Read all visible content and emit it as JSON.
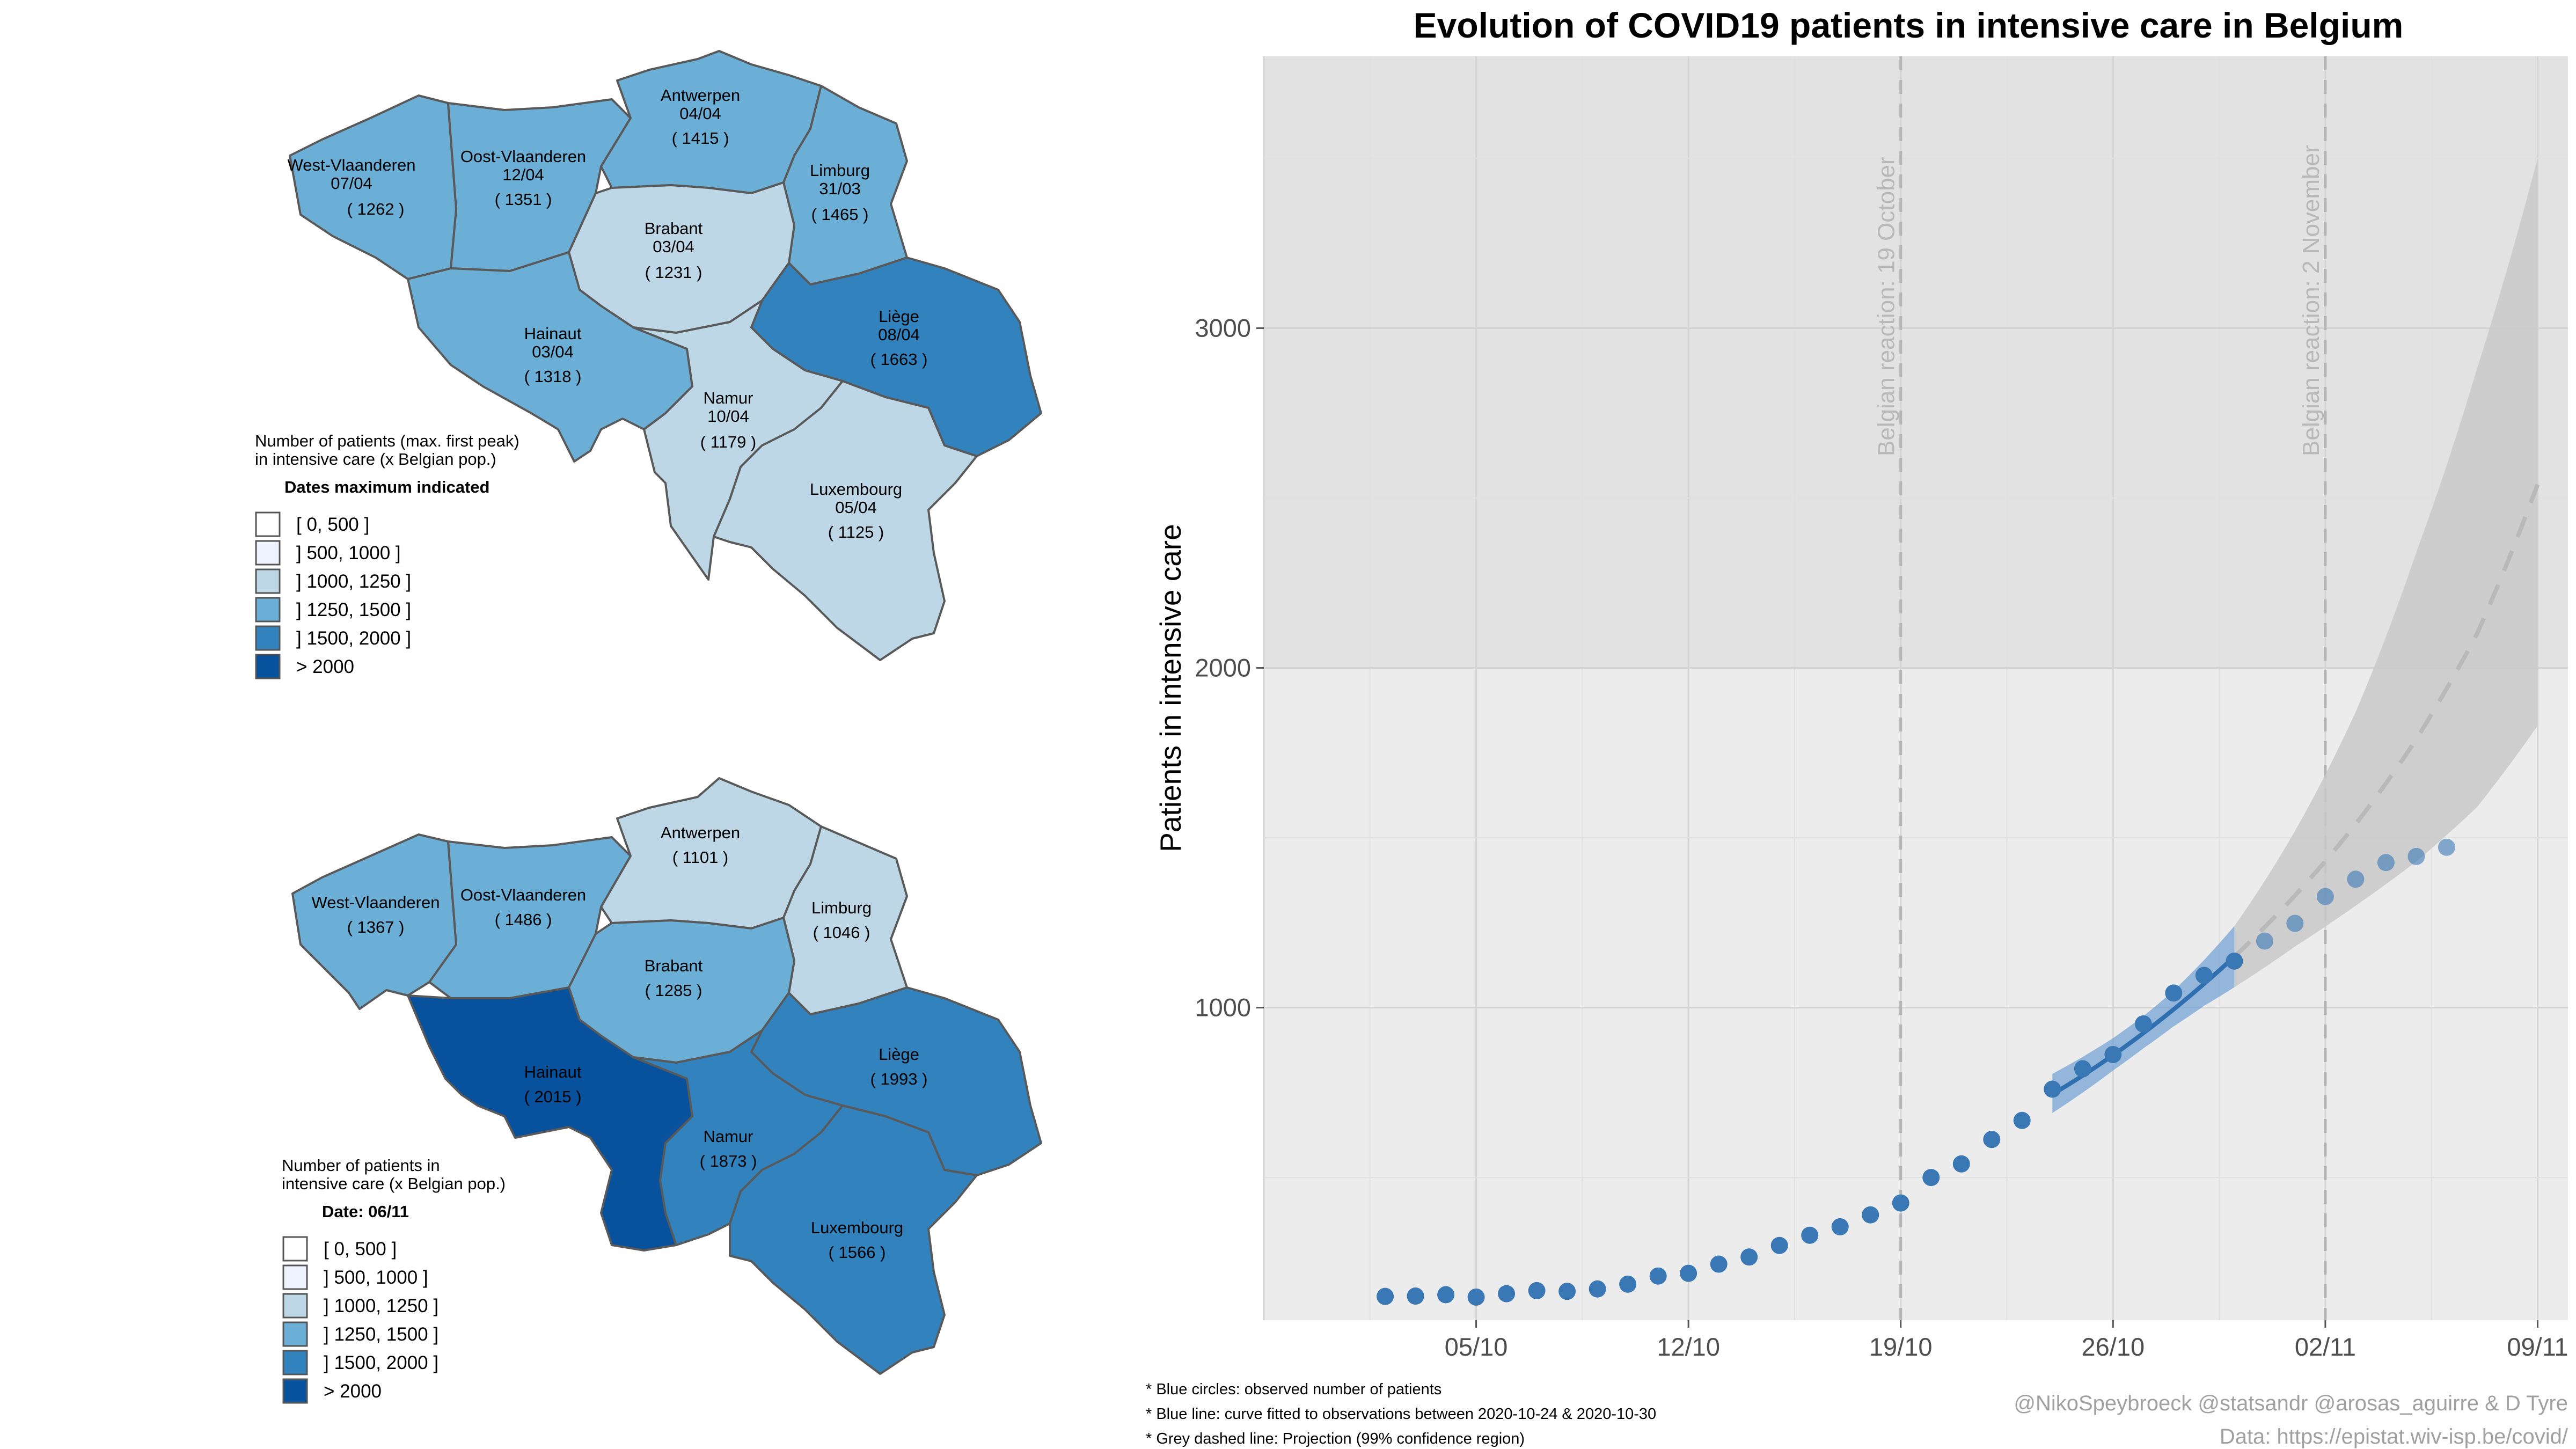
{
  "colors": {
    "bin_0": "#ffffff",
    "bin_1": "#eff3ff",
    "bin_2": "#bdd7e7",
    "bin_3": "#6baed6",
    "bin_4": "#3182bd",
    "bin_5": "#08519c",
    "obs_blue": "#3a78b5",
    "fit_band": "#6e9fd3",
    "proj_band": "#c9c9c9",
    "panel_dark": "#e2e2e2",
    "panel_light": "#ececec"
  },
  "map_top": {
    "legend_title_1": "Number of patients (max. first peak)",
    "legend_title_2": "in intensive care (x Belgian pop.)",
    "legend_subtitle": "Dates maximum indicated",
    "legend_items": [
      "[ 0, 500 ]",
      "] 500, 1000 ]",
      "] 1000, 1250 ]",
      "] 1250, 1500 ]",
      "] 1500, 2000 ]",
      "> 2000"
    ],
    "provinces": {
      "west": {
        "name": "West-Vlaanderen",
        "date": "07/04",
        "value": "( 1262 )",
        "bin": 3
      },
      "oost": {
        "name": "Oost-Vlaanderen",
        "date": "12/04",
        "value": "( 1351 )",
        "bin": 3
      },
      "antwerpen": {
        "name": "Antwerpen",
        "date": "04/04",
        "value": "( 1415 )",
        "bin": 3
      },
      "limburg": {
        "name": "Limburg",
        "date": "31/03",
        "value": "( 1465 )",
        "bin": 3
      },
      "brabant": {
        "name": "Brabant",
        "date": "03/04",
        "value": "( 1231 )",
        "bin": 2
      },
      "hainaut": {
        "name": "Hainaut",
        "date": "03/04",
        "value": "( 1318 )",
        "bin": 3
      },
      "liege": {
        "name": "Liège",
        "date": "08/04",
        "value": "( 1663 )",
        "bin": 4
      },
      "namur": {
        "name": "Namur",
        "date": "10/04",
        "value": "( 1179 )",
        "bin": 2
      },
      "luxembourg": {
        "name": "Luxembourg",
        "date": "05/04",
        "value": "( 1125 )",
        "bin": 2
      }
    }
  },
  "map_bottom": {
    "legend_title_1": "Number of patients in",
    "legend_title_2": "intensive care (x Belgian pop.)",
    "legend_subtitle": "Date: 06/11",
    "legend_items": [
      "[ 0, 500 ]",
      "] 500, 1000 ]",
      "] 1000, 1250 ]",
      "] 1250, 1500 ]",
      "] 1500, 2000 ]",
      "> 2000"
    ],
    "provinces": {
      "west": {
        "name": "West-Vlaanderen",
        "value": "( 1367 )",
        "bin": 3
      },
      "oost": {
        "name": "Oost-Vlaanderen",
        "value": "( 1486 )",
        "bin": 3
      },
      "antwerpen": {
        "name": "Antwerpen",
        "value": "( 1101 )",
        "bin": 2
      },
      "limburg": {
        "name": "Limburg",
        "value": "( 1046 )",
        "bin": 2
      },
      "brabant": {
        "name": "Brabant",
        "value": "( 1285 )",
        "bin": 3
      },
      "hainaut": {
        "name": "Hainaut",
        "value": "( 2015 )",
        "bin": 5
      },
      "liege": {
        "name": "Liège",
        "value": "( 1993 )",
        "bin": 4
      },
      "namur": {
        "name": "Namur",
        "value": "( 1873 )",
        "bin": 4
      },
      "luxembourg": {
        "name": "Luxembourg",
        "value": "( 1566 )",
        "bin": 4
      }
    }
  },
  "chart_data": {
    "type": "scatter",
    "title": "Evolution of COVID19 patients in intensive care in Belgium",
    "xlabel": "",
    "ylabel": "Patients in intensive care",
    "x_range": [
      "2020-09-28",
      "2020-11-10"
    ],
    "ylim": [
      80,
      3800
    ],
    "x_ticks": [
      {
        "date": "2020-10-05",
        "label": "05/10"
      },
      {
        "date": "2020-10-12",
        "label": "12/10"
      },
      {
        "date": "2020-10-19",
        "label": "19/10"
      },
      {
        "date": "2020-10-26",
        "label": "26/10"
      },
      {
        "date": "2020-11-02",
        "label": "02/11"
      },
      {
        "date": "2020-11-09",
        "label": "09/11"
      }
    ],
    "y_ticks": [
      1000,
      2000,
      3000
    ],
    "grid": true,
    "shaded_region_above": 2000,
    "reference_lines": [
      {
        "date": "2020-10-19",
        "label": "Belgian reaction: 19 October"
      },
      {
        "date": "2020-11-02",
        "label": "Belgian reaction: 2 November"
      }
    ],
    "observed": {
      "name": "Blue circles: observed number of patients",
      "points": [
        {
          "date": "2020-10-02",
          "y": 150
        },
        {
          "date": "2020-10-03",
          "y": 151
        },
        {
          "date": "2020-10-04",
          "y": 155
        },
        {
          "date": "2020-10-05",
          "y": 148
        },
        {
          "date": "2020-10-06",
          "y": 158
        },
        {
          "date": "2020-10-07",
          "y": 167
        },
        {
          "date": "2020-10-08",
          "y": 165
        },
        {
          "date": "2020-10-09",
          "y": 172
        },
        {
          "date": "2020-10-10",
          "y": 186
        },
        {
          "date": "2020-10-11",
          "y": 210
        },
        {
          "date": "2020-10-12",
          "y": 218
        },
        {
          "date": "2020-10-13",
          "y": 245
        },
        {
          "date": "2020-10-14",
          "y": 266
        },
        {
          "date": "2020-10-15",
          "y": 300
        },
        {
          "date": "2020-10-16",
          "y": 330
        },
        {
          "date": "2020-10-17",
          "y": 355
        },
        {
          "date": "2020-10-18",
          "y": 390
        },
        {
          "date": "2020-10-19",
          "y": 425
        },
        {
          "date": "2020-10-20",
          "y": 500
        },
        {
          "date": "2020-10-21",
          "y": 540
        },
        {
          "date": "2020-10-22",
          "y": 612
        },
        {
          "date": "2020-10-23",
          "y": 668
        },
        {
          "date": "2020-10-24",
          "y": 760
        },
        {
          "date": "2020-10-25",
          "y": 820
        },
        {
          "date": "2020-10-26",
          "y": 862
        },
        {
          "date": "2020-10-27",
          "y": 952
        },
        {
          "date": "2020-10-28",
          "y": 1043
        },
        {
          "date": "2020-10-29",
          "y": 1095
        },
        {
          "date": "2020-10-30",
          "y": 1137
        },
        {
          "date": "2020-10-31",
          "y": 1196
        },
        {
          "date": "2020-11-01",
          "y": 1248
        },
        {
          "date": "2020-11-02",
          "y": 1327
        },
        {
          "date": "2020-11-03",
          "y": 1378
        },
        {
          "date": "2020-11-04",
          "y": 1427
        },
        {
          "date": "2020-11-05",
          "y": 1445
        },
        {
          "date": "2020-11-06",
          "y": 1472
        }
      ]
    },
    "fitted": {
      "name": "Blue line: curve fitted to observations between 2020-10-24 & 2020-10-30",
      "points": [
        {
          "date": "2020-10-24",
          "y": 745,
          "lo": 690,
          "hi": 805
        },
        {
          "date": "2020-10-25",
          "y": 800,
          "lo": 750,
          "hi": 855
        },
        {
          "date": "2020-10-26",
          "y": 860,
          "lo": 815,
          "hi": 910
        },
        {
          "date": "2020-10-27",
          "y": 925,
          "lo": 880,
          "hi": 975
        },
        {
          "date": "2020-10-28",
          "y": 995,
          "lo": 945,
          "hi": 1050
        },
        {
          "date": "2020-10-29",
          "y": 1070,
          "lo": 1005,
          "hi": 1140
        },
        {
          "date": "2020-10-30",
          "y": 1150,
          "lo": 1060,
          "hi": 1240
        }
      ]
    },
    "projection": {
      "name": "Grey dashed line: Projection (99% confidence region)",
      "points": [
        {
          "date": "2020-10-30",
          "y": 1150,
          "lo": 1060,
          "hi": 1240
        },
        {
          "date": "2020-11-01",
          "y": 1330,
          "lo": 1180,
          "hi": 1520
        },
        {
          "date": "2020-11-03",
          "y": 1540,
          "lo": 1300,
          "hi": 1870
        },
        {
          "date": "2020-11-05",
          "y": 1790,
          "lo": 1430,
          "hi": 2340
        },
        {
          "date": "2020-11-07",
          "y": 2100,
          "lo": 1590,
          "hi": 2880
        },
        {
          "date": "2020-11-09",
          "y": 2540,
          "lo": 1830,
          "hi": 3500
        }
      ]
    }
  },
  "notes": [
    "* Blue circles: observed number of patients",
    "* Blue line: curve fitted to observations between 2020-10-24 & 2020-10-30",
    "* Grey dashed line: Projection (99% confidence region)"
  ],
  "credits": {
    "line1": "@NikoSpeybroeck @statsandr @arosas_aguirre & D Tyre",
    "line2": "Data: https://epistat.wiv-isp.be/covid/"
  }
}
